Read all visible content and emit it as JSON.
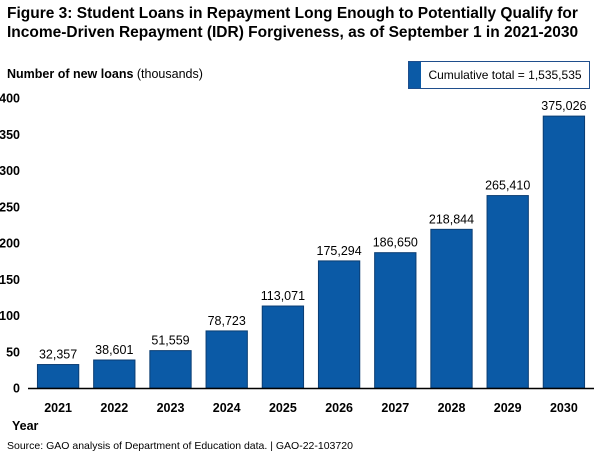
{
  "figure": {
    "title": "Figure 3: Student Loans in Repayment Long Enough to Potentially Qualify for Income-Driven Repayment (IDR) Forgiveness, as of September 1 in 2021-2030",
    "source": "Source:  GAO analysis of Department of Education data.  |  GAO-22-103720",
    "cumulative_total_text": "Cumulative total = 1,535,535",
    "colors": {
      "bar": "#0b5aa6",
      "bar_edge": "#0a3d73",
      "axis": "#000000"
    }
  },
  "chart_data": {
    "type": "bar",
    "ylabel_bold": "Number of new loans",
    "ylabel_unit": "(thousands)",
    "xlabel": "Year",
    "categories": [
      "2021",
      "2022",
      "2023",
      "2024",
      "2025",
      "2026",
      "2027",
      "2028",
      "2029",
      "2030"
    ],
    "values": [
      32357,
      38601,
      51559,
      78723,
      113071,
      175294,
      186650,
      218844,
      265410,
      375026
    ],
    "value_labels": [
      "32,357",
      "38,601",
      "51,559",
      "78,723",
      "113,071",
      "175,294",
      "186,650",
      "218,844",
      "265,410",
      "375,026"
    ],
    "yticks": [
      "0",
      "50",
      "100",
      "150",
      "200",
      "250",
      "300",
      "350",
      "400"
    ],
    "ylim": [
      0,
      400
    ],
    "grid": false,
    "legend": "none"
  }
}
